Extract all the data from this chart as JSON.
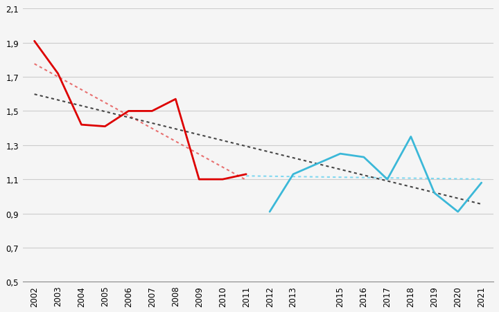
{
  "years_red": [
    2002,
    2003,
    2004,
    2005,
    2006,
    2007,
    2008,
    2009,
    2010,
    2011
  ],
  "values_red": [
    1.91,
    1.72,
    1.42,
    1.41,
    1.5,
    1.5,
    1.57,
    1.1,
    1.1,
    1.13
  ],
  "years_blue": [
    2012,
    2013,
    2015,
    2016,
    2017,
    2018,
    2019,
    2020,
    2021
  ],
  "values_blue": [
    0.91,
    1.13,
    1.25,
    1.23,
    1.1,
    1.35,
    1.02,
    0.91,
    1.08
  ],
  "color_red": "#dd0000",
  "color_blue": "#3bb8d8",
  "color_trend_black": "#444444",
  "color_trend_red": "#e87070",
  "color_trend_cyan": "#80d8f0",
  "ylim": [
    0.5,
    2.1
  ],
  "yticks": [
    0.5,
    0.7,
    0.9,
    1.1,
    1.3,
    1.5,
    1.7,
    1.9,
    2.1
  ],
  "xlim": [
    2001.5,
    2021.5
  ],
  "xticks": [
    2002,
    2003,
    2004,
    2005,
    2006,
    2007,
    2008,
    2009,
    2010,
    2011,
    2012,
    2013,
    2015,
    2016,
    2017,
    2018,
    2019,
    2020,
    2021
  ],
  "background_color": "#f5f5f5",
  "grid_color": "#cccccc"
}
